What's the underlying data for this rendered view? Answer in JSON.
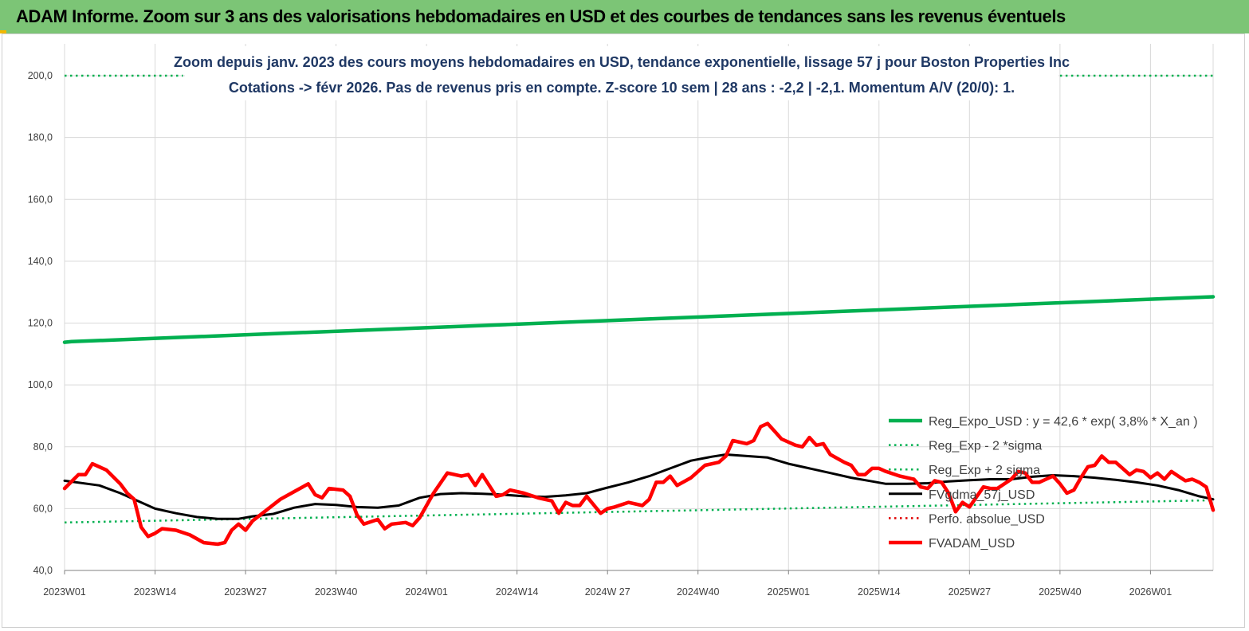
{
  "header": {
    "title": "ADAM Informe. Zoom sur 3 ans des valorisations hebdomadaires en USD et des courbes de tendances sans les revenus éventuels"
  },
  "chart_data": {
    "type": "line",
    "title_lines": [
      "Zoom depuis janv. 2023 des cours moyens hebdomadaires en USD, tendance exponentielle, lissage 57 j pour Boston Properties Inc",
      "Cotations -> févr 2026.  Pas de revenus pris en compte. Z-score 10 sem  | 28 ans : -2,2 | -2,1. Momentum A/V (20/0): 1."
    ],
    "xlabel": "",
    "ylabel": "",
    "ylim": [
      40,
      200
    ],
    "y_ticks": [
      "40,0",
      "60,0",
      "80,0",
      "100,0",
      "120,0",
      "140,0",
      "160,0",
      "180,0",
      "200,0"
    ],
    "x_tick_labels": [
      "2023W01",
      "2023W14",
      "2023W27",
      "2023W40",
      "2024W01",
      "2024W14",
      "2024W 27",
      "2024W40",
      "2025W01",
      "2025W14",
      "2025W27",
      "2025W40",
      "2026W01"
    ],
    "x_tick_weeks": [
      0,
      13,
      26,
      39,
      52,
      65,
      78,
      91,
      104,
      117,
      130,
      143,
      156
    ],
    "xlim_weeks": [
      0,
      165
    ],
    "grid": "vertical and horizontal",
    "legend_position": "right",
    "series": [
      {
        "name": "Reg_Expo_USD : y = 42,6 * exp( 3,8% *  X_an )",
        "color": "#00b050",
        "style": "solid-thick",
        "anchors": [
          [
            0,
            113.8
          ],
          [
            1,
            114.0
          ],
          [
            165,
            128.5
          ]
        ]
      },
      {
        "name": "Reg_Exp - 2 *sigma",
        "color": "#00b050",
        "style": "dotted",
        "anchors": [
          [
            0,
            55.5
          ],
          [
            165,
            62.7
          ]
        ]
      },
      {
        "name": "Reg_Exp + 2 sigma",
        "color": "#00b050",
        "style": "dotted",
        "segments": [
          [
            [
              0,
              200
            ],
            [
              17,
              200
            ]
          ],
          [
            [
              143,
              200
            ],
            [
              165,
              200
            ]
          ]
        ]
      },
      {
        "name": "FVgdma_57j_USD",
        "color": "#000000",
        "style": "solid",
        "anchors": [
          [
            0,
            69
          ],
          [
            5,
            67.5
          ],
          [
            8,
            65
          ],
          [
            11,
            62
          ],
          [
            13,
            60
          ],
          [
            16,
            58.5
          ],
          [
            19,
            57.3
          ],
          [
            22,
            56.7
          ],
          [
            25,
            56.7
          ],
          [
            27,
            57.5
          ],
          [
            30,
            58.3
          ],
          [
            33,
            60.3
          ],
          [
            36,
            61.5
          ],
          [
            39,
            61.2
          ],
          [
            42,
            60.5
          ],
          [
            45,
            60.3
          ],
          [
            48,
            61
          ],
          [
            51,
            63.5
          ],
          [
            54,
            64.7
          ],
          [
            57,
            65
          ],
          [
            60,
            64.8
          ],
          [
            63,
            64.5
          ],
          [
            66,
            64
          ],
          [
            69,
            63.8
          ],
          [
            72,
            64.3
          ],
          [
            75,
            65
          ],
          [
            78,
            66.8
          ],
          [
            81,
            68.5
          ],
          [
            84,
            70.5
          ],
          [
            87,
            73
          ],
          [
            90,
            75.5
          ],
          [
            93,
            76.8
          ],
          [
            95,
            77.5
          ],
          [
            98,
            77
          ],
          [
            101,
            76.5
          ],
          [
            104,
            74.5
          ],
          [
            107,
            73
          ],
          [
            110,
            71.5
          ],
          [
            113,
            70
          ],
          [
            116,
            68.8
          ],
          [
            118,
            68
          ],
          [
            121,
            68
          ],
          [
            124,
            68.2
          ],
          [
            127,
            68.8
          ],
          [
            130,
            69.2
          ],
          [
            133,
            69.5
          ],
          [
            136,
            69.5
          ],
          [
            139,
            70.3
          ],
          [
            142,
            70.8
          ],
          [
            145,
            70.5
          ],
          [
            148,
            70
          ],
          [
            151,
            69.3
          ],
          [
            154,
            68.5
          ],
          [
            157,
            67.5
          ],
          [
            160,
            66
          ],
          [
            163,
            64
          ],
          [
            165,
            63
          ]
        ]
      },
      {
        "name": "Perfo. absolue_USD",
        "color": "#e00000",
        "style": "dotted"
      },
      {
        "name": "FVADAM_USD",
        "color": "#ff0000",
        "style": "solid-thick",
        "anchors": [
          [
            0,
            66.5
          ],
          [
            2,
            71
          ],
          [
            3,
            71
          ],
          [
            4,
            74.5
          ],
          [
            6,
            72.5
          ],
          [
            8,
            68
          ],
          [
            9,
            65
          ],
          [
            10,
            63
          ],
          [
            11,
            54
          ],
          [
            12,
            51
          ],
          [
            13,
            52
          ],
          [
            14,
            53.5
          ],
          [
            16,
            53
          ],
          [
            18,
            51.5
          ],
          [
            20,
            49
          ],
          [
            22,
            48.5
          ],
          [
            23,
            49
          ],
          [
            24,
            53
          ],
          [
            25,
            55
          ],
          [
            26,
            53
          ],
          [
            27,
            56
          ],
          [
            29,
            59.5
          ],
          [
            31,
            63
          ],
          [
            33,
            65.5
          ],
          [
            35,
            68
          ],
          [
            36,
            64.5
          ],
          [
            37,
            63.5
          ],
          [
            38,
            66.5
          ],
          [
            40,
            66
          ],
          [
            41,
            64
          ],
          [
            42,
            58
          ],
          [
            43,
            55
          ],
          [
            45,
            56.5
          ],
          [
            46,
            53.5
          ],
          [
            47,
            55
          ],
          [
            49,
            55.5
          ],
          [
            50,
            54.5
          ],
          [
            51,
            57
          ],
          [
            53,
            65
          ],
          [
            55,
            71.5
          ],
          [
            57,
            70.5
          ],
          [
            58,
            71
          ],
          [
            59,
            67.5
          ],
          [
            60,
            71
          ],
          [
            62,
            64
          ],
          [
            63,
            64.5
          ],
          [
            64,
            66
          ],
          [
            66,
            65
          ],
          [
            68,
            63.5
          ],
          [
            70,
            62.5
          ],
          [
            71,
            58.5
          ],
          [
            72,
            62
          ],
          [
            73,
            61
          ],
          [
            74,
            61
          ],
          [
            75,
            64
          ],
          [
            77,
            58.5
          ],
          [
            78,
            60
          ],
          [
            79,
            60.5
          ],
          [
            81,
            62
          ],
          [
            83,
            61
          ],
          [
            84,
            63
          ],
          [
            85,
            68.5
          ],
          [
            86,
            68.5
          ],
          [
            87,
            70.5
          ],
          [
            88,
            67.5
          ],
          [
            90,
            70
          ],
          [
            92,
            74
          ],
          [
            94,
            75
          ],
          [
            95,
            77
          ],
          [
            96,
            82
          ],
          [
            98,
            81
          ],
          [
            99,
            82
          ],
          [
            100,
            86.5
          ],
          [
            101,
            87.5
          ],
          [
            102,
            85
          ],
          [
            103,
            82.5
          ],
          [
            105,
            80.5
          ],
          [
            106,
            80
          ],
          [
            107,
            83
          ],
          [
            108,
            80.5
          ],
          [
            109,
            81
          ],
          [
            110,
            77.5
          ],
          [
            112,
            75
          ],
          [
            113,
            74
          ],
          [
            114,
            71
          ],
          [
            115,
            71
          ],
          [
            116,
            73
          ],
          [
            117,
            73
          ],
          [
            118,
            72
          ],
          [
            120,
            70.5
          ],
          [
            121,
            70
          ],
          [
            122,
            69.5
          ],
          [
            123,
            67
          ],
          [
            124,
            66.5
          ],
          [
            125,
            69
          ],
          [
            126,
            68.5
          ],
          [
            127,
            65
          ],
          [
            128,
            59
          ],
          [
            129,
            62
          ],
          [
            130,
            60.5
          ],
          [
            132,
            67
          ],
          [
            133,
            66.5
          ],
          [
            134,
            66.5
          ],
          [
            136,
            69.5
          ],
          [
            137,
            72
          ],
          [
            138,
            71.5
          ],
          [
            139,
            68.5
          ],
          [
            140,
            68.5
          ],
          [
            141,
            69.5
          ],
          [
            142,
            70.5
          ],
          [
            143,
            68
          ],
          [
            144,
            65
          ],
          [
            145,
            66
          ],
          [
            146,
            70
          ],
          [
            147,
            73.5
          ],
          [
            148,
            74
          ],
          [
            149,
            77
          ],
          [
            150,
            75
          ],
          [
            151,
            75
          ],
          [
            152,
            73
          ],
          [
            153,
            71
          ],
          [
            154,
            72.5
          ],
          [
            155,
            72
          ],
          [
            156,
            70
          ],
          [
            157,
            71.5
          ],
          [
            158,
            69.5
          ],
          [
            159,
            72
          ],
          [
            160,
            70.5
          ],
          [
            161,
            69
          ],
          [
            162,
            69.5
          ],
          [
            163,
            68.5
          ],
          [
            164,
            67
          ],
          [
            165,
            59.5
          ]
        ]
      }
    ]
  },
  "colors": {
    "banner_background": "#7cc576",
    "title_text": "#1f3864",
    "grid": "#d9d9d9"
  }
}
